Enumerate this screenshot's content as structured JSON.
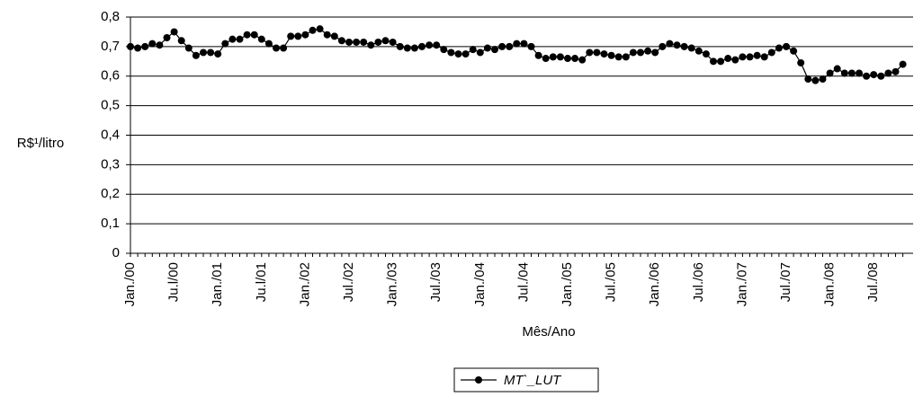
{
  "chart_data": {
    "type": "line",
    "y_label": "R$¹/litro",
    "x_label": "Mês/Ano",
    "categories": [
      "Jan./00",
      null,
      null,
      null,
      null,
      null,
      "Ju.l/00",
      null,
      null,
      null,
      null,
      null,
      "Jan./01",
      null,
      null,
      null,
      null,
      null,
      "Ju.l/01",
      null,
      null,
      null,
      null,
      null,
      "Jan./02",
      null,
      null,
      null,
      null,
      null,
      "Jul./02",
      null,
      null,
      null,
      null,
      null,
      "Jan./03",
      null,
      null,
      null,
      null,
      null,
      "Jul./03",
      null,
      null,
      null,
      null,
      null,
      "Jan./04",
      null,
      null,
      null,
      null,
      null,
      "Jul./04",
      null,
      null,
      null,
      null,
      null,
      "Jan./05",
      null,
      null,
      null,
      null,
      null,
      "Jul./05",
      null,
      null,
      null,
      null,
      null,
      "Jan./06",
      null,
      null,
      null,
      null,
      null,
      "Jul./06",
      null,
      null,
      null,
      null,
      null,
      "Jan./07",
      null,
      null,
      null,
      null,
      null,
      "Jul./07",
      null,
      null,
      null,
      null,
      null,
      "Jan./08",
      null,
      null,
      null,
      null,
      null,
      "Jul./08",
      null,
      null,
      null,
      null
    ],
    "series": [
      {
        "name": "MT`_LUT",
        "color": "#000000",
        "values": [
          0.7,
          0.695,
          0.7,
          0.71,
          0.705,
          0.73,
          0.75,
          0.72,
          0.695,
          0.67,
          0.68,
          0.68,
          0.675,
          0.71,
          0.725,
          0.725,
          0.74,
          0.74,
          0.725,
          0.71,
          0.695,
          0.695,
          0.735,
          0.735,
          0.74,
          0.755,
          0.76,
          0.74,
          0.735,
          0.72,
          0.715,
          0.715,
          0.715,
          0.705,
          0.715,
          0.72,
          0.715,
          0.7,
          0.695,
          0.695,
          0.7,
          0.705,
          0.705,
          0.69,
          0.68,
          0.675,
          0.675,
          0.69,
          0.68,
          0.695,
          0.69,
          0.7,
          0.7,
          0.71,
          0.71,
          0.7,
          0.67,
          0.66,
          0.665,
          0.665,
          0.66,
          0.66,
          0.655,
          0.68,
          0.68,
          0.675,
          0.67,
          0.665,
          0.665,
          0.68,
          0.68,
          0.685,
          0.68,
          0.7,
          0.71,
          0.705,
          0.7,
          0.695,
          0.685,
          0.675,
          0.65,
          0.65,
          0.66,
          0.655,
          0.665,
          0.665,
          0.67,
          0.665,
          0.68,
          0.695,
          0.7,
          0.685,
          0.645,
          0.59,
          0.585,
          0.59,
          0.61,
          0.625,
          0.61,
          0.61,
          0.61,
          0.6,
          0.605,
          0.6,
          0.61,
          0.615,
          0.64
        ]
      }
    ],
    "ylim": [
      0,
      0.8
    ],
    "yticks": [
      0,
      {
        "value": 0.1,
        "label": "0,1"
      },
      {
        "value": 0.2,
        "label": "0,2"
      },
      {
        "value": 0.3,
        "label": "0,3"
      },
      {
        "value": 0.4,
        "label": "0,4"
      },
      {
        "value": 0.5,
        "label": "0,5"
      },
      {
        "value": 0.6,
        "label": "0,6"
      },
      {
        "value": 0.7,
        "label": "0,7"
      },
      {
        "value": 0.8,
        "label": "0,8"
      }
    ],
    "grid": true
  }
}
